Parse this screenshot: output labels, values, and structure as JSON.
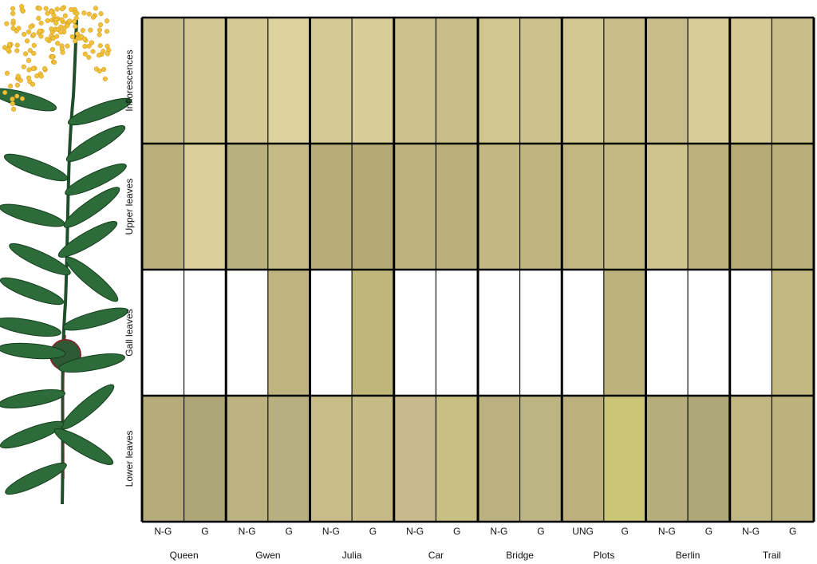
{
  "rows": [
    {
      "label": "Inflorescences",
      "colors": [
        "#c9bf8c",
        "#d3c894",
        "#d4c995",
        "#dcd29f",
        "#d5ca96",
        "#d8cd99",
        "#cdc28d",
        "#c9be8a",
        "#d1c590",
        "#cdc18d",
        "#d3c792",
        "#c8bd88",
        "#c7bc8a",
        "#d7cd9b",
        "#d6c994",
        "#c9be89"
      ]
    },
    {
      "label": "Upper leaves",
      "colors": [
        "#bab07e",
        "#dbd09c",
        "#b9b07f",
        "#c4ba88",
        "#b7ad78",
        "#b5aa76",
        "#bdb37f",
        "#bbb07c",
        "#c3b884",
        "#c0b580",
        "#c2b681",
        "#c5b983",
        "#cfc38e",
        "#bcb17d",
        "#b4ab77",
        "#b9ae79"
      ]
    },
    {
      "label": "Gall leaves",
      "colors": [
        null,
        null,
        null,
        "#bfb37f",
        null,
        "#bfb77a",
        null,
        null,
        null,
        null,
        null,
        "#bdb27c",
        null,
        null,
        null,
        "#c3b781"
      ]
    },
    {
      "label": "Lower leaves",
      "colors": [
        "#b6ac7b",
        "#aca575",
        "#bdb281",
        "#b8af80",
        "#c8bd88",
        "#c6bb87",
        "#c8ba8c",
        "#c8c083",
        "#bab080",
        "#bdb483",
        "#bcb07f",
        "#cbc675",
        "#b5ad7c",
        "#aea878",
        "#c1b783",
        "#bcb27e"
      ]
    }
  ],
  "sites": [
    {
      "name": "Queen",
      "columns": [
        "N-G",
        "G"
      ]
    },
    {
      "name": "Gwen",
      "columns": [
        "N-G",
        "G"
      ]
    },
    {
      "name": "Julia",
      "columns": [
        "N-G",
        "G"
      ]
    },
    {
      "name": "Car",
      "columns": [
        "N-G",
        "G"
      ]
    },
    {
      "name": "Bridge",
      "columns": [
        "N-G",
        "G"
      ]
    },
    {
      "name": "Plots",
      "columns": [
        "UNG",
        "G"
      ]
    },
    {
      "name": "Berlin",
      "columns": [
        "N-G",
        "G"
      ]
    },
    {
      "name": "Trail",
      "columns": [
        "N-G",
        "G"
      ]
    }
  ]
}
